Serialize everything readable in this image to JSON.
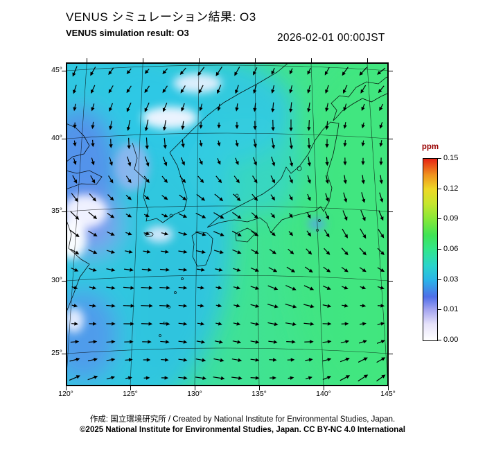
{
  "header": {
    "title_ja": "VENUS シミュレーション結果: O3",
    "title_en": "VENUS simulation result: O3",
    "timestamp": "2026-02-01 00:00JST"
  },
  "map": {
    "lat_labels": [
      "45°",
      "40°",
      "35°",
      "30°",
      "25°"
    ],
    "lon_labels": [
      "120°",
      "125°",
      "130°",
      "135°",
      "140°",
      "145°"
    ]
  },
  "colorbar": {
    "unit": "ppm",
    "unit_color": "#990000",
    "tick_labels": [
      "0.15",
      "0.12",
      "0.09",
      "0.06",
      "0.03",
      "0.01",
      "0.00"
    ],
    "gradient_stops": [
      [
        0,
        "#ffffff"
      ],
      [
        9,
        "#e6e2fa"
      ],
      [
        16.7,
        "#a6a6f0"
      ],
      [
        24,
        "#4f6ee8"
      ],
      [
        33.3,
        "#2ab4e8"
      ],
      [
        41,
        "#2ad4cc"
      ],
      [
        50,
        "#32e68c"
      ],
      [
        58,
        "#40e455"
      ],
      [
        66.7,
        "#86e838"
      ],
      [
        75,
        "#c4e62e"
      ],
      [
        83.3,
        "#eed826"
      ],
      [
        91,
        "#f0941e"
      ],
      [
        100,
        "#e62314"
      ]
    ]
  },
  "footer": {
    "line1": "作成: 国立環境研究所 / Created by National Institute for Environmental Studies, Japan.",
    "line2": "©2025 National Institute for Environmental Studies, Japan. CC BY-NC 4.0 International"
  },
  "chart_data": {
    "type": "heatmap",
    "title": "VENUS simulation result: O3",
    "title_ja": "VENUS シミュレーション結果: O3",
    "variable": "O3",
    "unit": "ppm",
    "timestamp": "2026-02-01 00:00JST",
    "region": {
      "lon_range": [
        120,
        145
      ],
      "lat_range": [
        24,
        46
      ]
    },
    "x_ticks": [
      "120°",
      "125°",
      "130°",
      "135°",
      "140°",
      "145°"
    ],
    "y_ticks": [
      "25°",
      "30°",
      "35°",
      "40°",
      "45°"
    ],
    "colorbar": {
      "label": "ppm",
      "ticks": [
        0.0,
        0.01,
        0.03,
        0.06,
        0.09,
        0.12,
        0.15
      ],
      "range": [
        0.0,
        0.15
      ],
      "orientation": "vertical-right"
    },
    "overlay": "wind vector arrows (black), regular grid over whole domain",
    "field_summary": "O3 mostly 0.03-0.06 ppm (cyan/green) across the domain; green values toward the eastern Pacific side; low 0.00-0.02 ppm patches (white/blue/lavender) along the continental western edge, near Shandong/Yellow Sea, and in the north-central band; small low spot near Tokyo Bay",
    "basemap": "East Asia coastlines (China coast, Korea, Japan, Hokkaido) with curved lat/lon graticule (conic projection)"
  }
}
